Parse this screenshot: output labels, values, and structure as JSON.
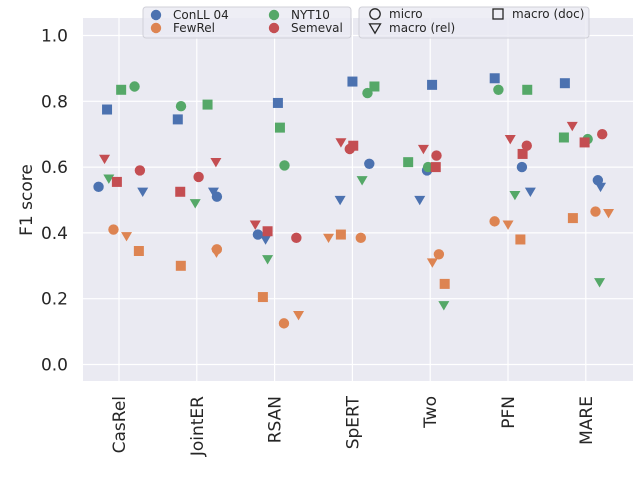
{
  "chart_data": {
    "type": "scatter",
    "title": "",
    "xlabel": "",
    "ylabel": "F1 score",
    "ylim": [
      -0.05,
      1.05
    ],
    "yticks": [
      "0.0",
      "0.2",
      "0.4",
      "0.6",
      "0.8",
      "1.0"
    ],
    "categories": [
      "CasRel",
      "JointER",
      "RSAN",
      "SpERT",
      "Two",
      "PFN",
      "MARE"
    ],
    "grid": true,
    "legend_position": "top",
    "datasets": [
      {
        "name": "ConLL 04",
        "color": "#4c72b0"
      },
      {
        "name": "FewRel",
        "color": "#dd8452"
      },
      {
        "name": "NYT10",
        "color": "#55a868"
      },
      {
        "name": "Semeval",
        "color": "#c44e52"
      }
    ],
    "metrics": [
      {
        "name": "micro",
        "marker": "circle"
      },
      {
        "name": "macro (rel)",
        "marker": "triangle-down"
      },
      {
        "name": "macro (doc)",
        "marker": "square"
      }
    ],
    "points": [
      {
        "model": "CasRel",
        "dataset": "ConLL 04",
        "metric": "micro",
        "value": 0.54
      },
      {
        "model": "CasRel",
        "dataset": "ConLL 04",
        "metric": "macro (rel)",
        "value": 0.525
      },
      {
        "model": "CasRel",
        "dataset": "ConLL 04",
        "metric": "macro (doc)",
        "value": 0.775
      },
      {
        "model": "CasRel",
        "dataset": "FewRel",
        "metric": "micro",
        "value": 0.41
      },
      {
        "model": "CasRel",
        "dataset": "FewRel",
        "metric": "macro (rel)",
        "value": 0.39
      },
      {
        "model": "CasRel",
        "dataset": "FewRel",
        "metric": "macro (doc)",
        "value": 0.345
      },
      {
        "model": "CasRel",
        "dataset": "NYT10",
        "metric": "micro",
        "value": 0.845
      },
      {
        "model": "CasRel",
        "dataset": "NYT10",
        "metric": "macro (rel)",
        "value": 0.565
      },
      {
        "model": "CasRel",
        "dataset": "NYT10",
        "metric": "macro (doc)",
        "value": 0.835
      },
      {
        "model": "CasRel",
        "dataset": "Semeval",
        "metric": "micro",
        "value": 0.59
      },
      {
        "model": "CasRel",
        "dataset": "Semeval",
        "metric": "macro (rel)",
        "value": 0.625
      },
      {
        "model": "CasRel",
        "dataset": "Semeval",
        "metric": "macro (doc)",
        "value": 0.555
      },
      {
        "model": "JointER",
        "dataset": "ConLL 04",
        "metric": "micro",
        "value": 0.51
      },
      {
        "model": "JointER",
        "dataset": "ConLL 04",
        "metric": "macro (rel)",
        "value": 0.525
      },
      {
        "model": "JointER",
        "dataset": "ConLL 04",
        "metric": "macro (doc)",
        "value": 0.745
      },
      {
        "model": "JointER",
        "dataset": "FewRel",
        "metric": "micro",
        "value": 0.35
      },
      {
        "model": "JointER",
        "dataset": "FewRel",
        "metric": "macro (rel)",
        "value": 0.34
      },
      {
        "model": "JointER",
        "dataset": "FewRel",
        "metric": "macro (doc)",
        "value": 0.3
      },
      {
        "model": "JointER",
        "dataset": "NYT10",
        "metric": "micro",
        "value": 0.785
      },
      {
        "model": "JointER",
        "dataset": "NYT10",
        "metric": "macro (rel)",
        "value": 0.49
      },
      {
        "model": "JointER",
        "dataset": "NYT10",
        "metric": "macro (doc)",
        "value": 0.79
      },
      {
        "model": "JointER",
        "dataset": "Semeval",
        "metric": "micro",
        "value": 0.57
      },
      {
        "model": "JointER",
        "dataset": "Semeval",
        "metric": "macro (rel)",
        "value": 0.615
      },
      {
        "model": "JointER",
        "dataset": "Semeval",
        "metric": "macro (doc)",
        "value": 0.525
      },
      {
        "model": "RSAN",
        "dataset": "ConLL 04",
        "metric": "micro",
        "value": 0.395
      },
      {
        "model": "RSAN",
        "dataset": "ConLL 04",
        "metric": "macro (rel)",
        "value": 0.38
      },
      {
        "model": "RSAN",
        "dataset": "ConLL 04",
        "metric": "macro (doc)",
        "value": 0.795
      },
      {
        "model": "RSAN",
        "dataset": "FewRel",
        "metric": "micro",
        "value": 0.125
      },
      {
        "model": "RSAN",
        "dataset": "FewRel",
        "metric": "macro (rel)",
        "value": 0.15
      },
      {
        "model": "RSAN",
        "dataset": "FewRel",
        "metric": "macro (doc)",
        "value": 0.205
      },
      {
        "model": "RSAN",
        "dataset": "NYT10",
        "metric": "micro",
        "value": 0.605
      },
      {
        "model": "RSAN",
        "dataset": "NYT10",
        "metric": "macro (rel)",
        "value": 0.32
      },
      {
        "model": "RSAN",
        "dataset": "NYT10",
        "metric": "macro (doc)",
        "value": 0.72
      },
      {
        "model": "RSAN",
        "dataset": "Semeval",
        "metric": "micro",
        "value": 0.385
      },
      {
        "model": "RSAN",
        "dataset": "Semeval",
        "metric": "macro (rel)",
        "value": 0.425
      },
      {
        "model": "RSAN",
        "dataset": "Semeval",
        "metric": "macro (doc)",
        "value": 0.405
      },
      {
        "model": "SpERT",
        "dataset": "ConLL 04",
        "metric": "micro",
        "value": 0.61
      },
      {
        "model": "SpERT",
        "dataset": "ConLL 04",
        "metric": "macro (rel)",
        "value": 0.5
      },
      {
        "model": "SpERT",
        "dataset": "ConLL 04",
        "metric": "macro (doc)",
        "value": 0.86
      },
      {
        "model": "SpERT",
        "dataset": "FewRel",
        "metric": "micro",
        "value": 0.385
      },
      {
        "model": "SpERT",
        "dataset": "FewRel",
        "metric": "macro (rel)",
        "value": 0.385
      },
      {
        "model": "SpERT",
        "dataset": "FewRel",
        "metric": "macro (doc)",
        "value": 0.395
      },
      {
        "model": "SpERT",
        "dataset": "NYT10",
        "metric": "micro",
        "value": 0.825
      },
      {
        "model": "SpERT",
        "dataset": "NYT10",
        "metric": "macro (rel)",
        "value": 0.56
      },
      {
        "model": "SpERT",
        "dataset": "NYT10",
        "metric": "macro (doc)",
        "value": 0.845
      },
      {
        "model": "SpERT",
        "dataset": "Semeval",
        "metric": "micro",
        "value": 0.655
      },
      {
        "model": "SpERT",
        "dataset": "Semeval",
        "metric": "macro (rel)",
        "value": 0.675
      },
      {
        "model": "SpERT",
        "dataset": "Semeval",
        "metric": "macro (doc)",
        "value": 0.665
      },
      {
        "model": "Two",
        "dataset": "ConLL 04",
        "metric": "micro",
        "value": 0.59
      },
      {
        "model": "Two",
        "dataset": "ConLL 04",
        "metric": "macro (rel)",
        "value": 0.5
      },
      {
        "model": "Two",
        "dataset": "ConLL 04",
        "metric": "macro (doc)",
        "value": 0.85
      },
      {
        "model": "Two",
        "dataset": "FewRel",
        "metric": "micro",
        "value": 0.335
      },
      {
        "model": "Two",
        "dataset": "FewRel",
        "metric": "macro (rel)",
        "value": 0.31
      },
      {
        "model": "Two",
        "dataset": "FewRel",
        "metric": "macro (doc)",
        "value": 0.245
      },
      {
        "model": "Two",
        "dataset": "NYT10",
        "metric": "micro",
        "value": 0.6
      },
      {
        "model": "Two",
        "dataset": "NYT10",
        "metric": "macro (rel)",
        "value": 0.18
      },
      {
        "model": "Two",
        "dataset": "NYT10",
        "metric": "macro (doc)",
        "value": 0.615
      },
      {
        "model": "Two",
        "dataset": "Semeval",
        "metric": "micro",
        "value": 0.635
      },
      {
        "model": "Two",
        "dataset": "Semeval",
        "metric": "macro (rel)",
        "value": 0.655
      },
      {
        "model": "Two",
        "dataset": "Semeval",
        "metric": "macro (doc)",
        "value": 0.6
      },
      {
        "model": "PFN",
        "dataset": "ConLL 04",
        "metric": "micro",
        "value": 0.6
      },
      {
        "model": "PFN",
        "dataset": "ConLL 04",
        "metric": "macro (rel)",
        "value": 0.525
      },
      {
        "model": "PFN",
        "dataset": "ConLL 04",
        "metric": "macro (doc)",
        "value": 0.87
      },
      {
        "model": "PFN",
        "dataset": "FewRel",
        "metric": "micro",
        "value": 0.435
      },
      {
        "model": "PFN",
        "dataset": "FewRel",
        "metric": "macro (rel)",
        "value": 0.425
      },
      {
        "model": "PFN",
        "dataset": "FewRel",
        "metric": "macro (doc)",
        "value": 0.38
      },
      {
        "model": "PFN",
        "dataset": "NYT10",
        "metric": "micro",
        "value": 0.835
      },
      {
        "model": "PFN",
        "dataset": "NYT10",
        "metric": "macro (rel)",
        "value": 0.515
      },
      {
        "model": "PFN",
        "dataset": "NYT10",
        "metric": "macro (doc)",
        "value": 0.835
      },
      {
        "model": "PFN",
        "dataset": "Semeval",
        "metric": "micro",
        "value": 0.665
      },
      {
        "model": "PFN",
        "dataset": "Semeval",
        "metric": "macro (rel)",
        "value": 0.685
      },
      {
        "model": "PFN",
        "dataset": "Semeval",
        "metric": "macro (doc)",
        "value": 0.64
      },
      {
        "model": "MARE",
        "dataset": "ConLL 04",
        "metric": "micro",
        "value": 0.56
      },
      {
        "model": "MARE",
        "dataset": "ConLL 04",
        "metric": "macro (rel)",
        "value": 0.54
      },
      {
        "model": "MARE",
        "dataset": "ConLL 04",
        "metric": "macro (doc)",
        "value": 0.855
      },
      {
        "model": "MARE",
        "dataset": "FewRel",
        "metric": "micro",
        "value": 0.465
      },
      {
        "model": "MARE",
        "dataset": "FewRel",
        "metric": "macro (rel)",
        "value": 0.46
      },
      {
        "model": "MARE",
        "dataset": "FewRel",
        "metric": "macro (doc)",
        "value": 0.445
      },
      {
        "model": "MARE",
        "dataset": "NYT10",
        "metric": "micro",
        "value": 0.685
      },
      {
        "model": "MARE",
        "dataset": "NYT10",
        "metric": "macro (rel)",
        "value": 0.25
      },
      {
        "model": "MARE",
        "dataset": "NYT10",
        "metric": "macro (doc)",
        "value": 0.69
      },
      {
        "model": "MARE",
        "dataset": "Semeval",
        "metric": "micro",
        "value": 0.7
      },
      {
        "model": "MARE",
        "dataset": "Semeval",
        "metric": "macro (rel)",
        "value": 0.725
      },
      {
        "model": "MARE",
        "dataset": "Semeval",
        "metric": "macro (doc)",
        "value": 0.675
      }
    ]
  }
}
